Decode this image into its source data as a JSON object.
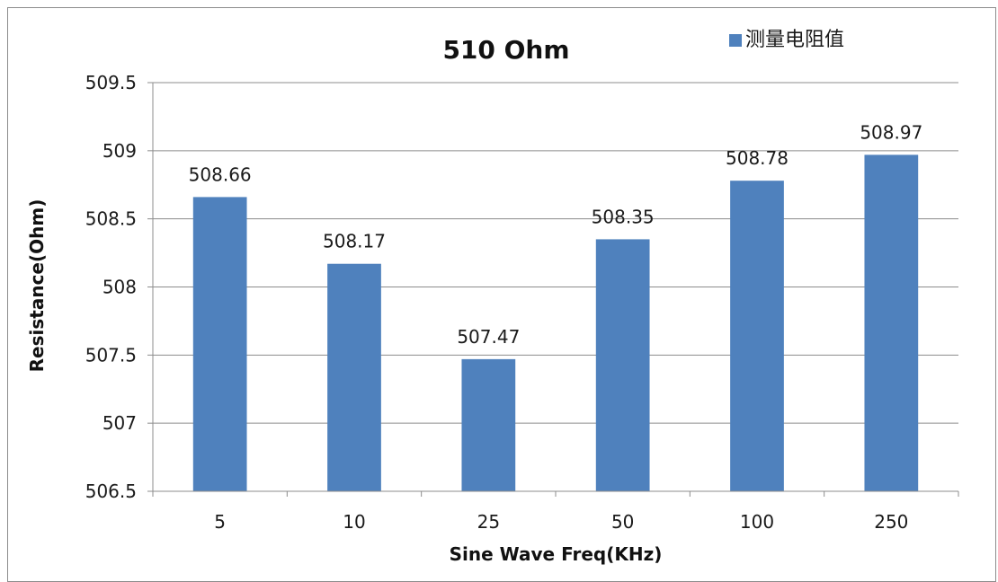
{
  "chart_data": {
    "type": "bar",
    "title": "510 Ohm",
    "xlabel": "Sine Wave Freq(KHz)",
    "ylabel": "Resistance(Ohm)",
    "categories": [
      "5",
      "10",
      "25",
      "50",
      "100",
      "250"
    ],
    "series": [
      {
        "name": "测量电阻值",
        "values": [
          508.66,
          508.17,
          507.47,
          508.35,
          508.78,
          508.97
        ],
        "color": "#4f81bd"
      }
    ],
    "data_labels": [
      "508.66",
      "508.17",
      "507.47",
      "508.35",
      "508.78",
      "508.97"
    ],
    "ylim": [
      506.5,
      509.5
    ],
    "yticks": [
      506.5,
      507,
      507.5,
      508,
      508.5,
      509,
      509.5
    ],
    "ytick_labels": [
      "506.5",
      "507",
      "507.5",
      "508",
      "508.5",
      "509",
      "509.5"
    ],
    "grid": true,
    "legend_position": "top-right",
    "colors": {
      "bar": "#4f81bd",
      "gridline": "#8c8c8c",
      "axis": "#8c8c8c"
    }
  }
}
